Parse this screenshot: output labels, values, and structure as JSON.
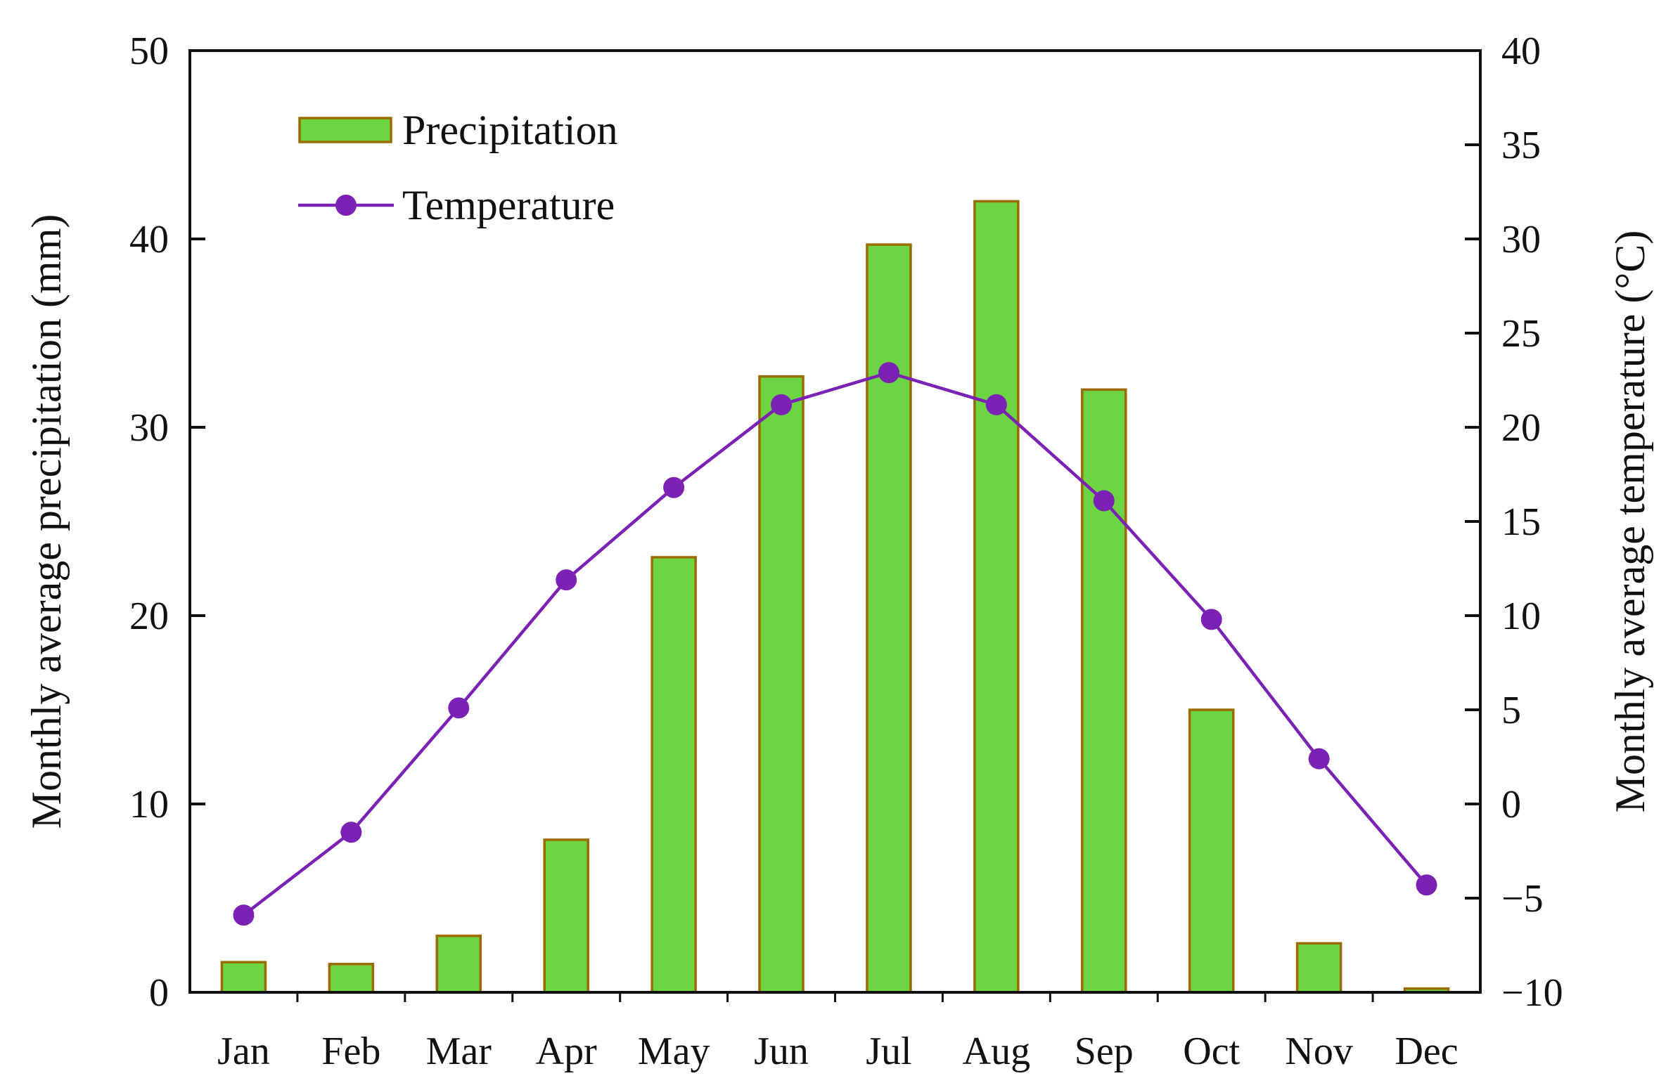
{
  "chart_data": {
    "type": "bar",
    "title": "",
    "categories": [
      "Jan",
      "Feb",
      "Mar",
      "Apr",
      "May",
      "Jun",
      "Jul",
      "Aug",
      "Sep",
      "Oct",
      "Nov",
      "Dec"
    ],
    "series": [
      {
        "name": "Precipitation",
        "type": "bar",
        "axis": "left",
        "values": [
          1.6,
          1.5,
          3.0,
          8.1,
          23.1,
          32.7,
          39.7,
          42.0,
          32.0,
          15.0,
          2.6,
          0.2
        ]
      },
      {
        "name": "Temperature",
        "type": "line",
        "axis": "right",
        "values": [
          -5.9,
          -1.5,
          5.1,
          11.9,
          16.8,
          21.2,
          22.9,
          21.2,
          16.1,
          9.8,
          2.4,
          -4.3
        ]
      }
    ],
    "xlabel": "",
    "ylabel": "Monthly average precipitation (mm)",
    "ylabel_right": "Monthly average temperature (°C)",
    "ylim": [
      0,
      50
    ],
    "ylim_right": [
      -10,
      40
    ],
    "yticks": [
      "0",
      "10",
      "20",
      "30",
      "40",
      "50"
    ],
    "yticks_right": [
      "−10",
      "−5",
      "0",
      "5",
      "10",
      "15",
      "20",
      "25",
      "30",
      "35",
      "40"
    ],
    "legend": {
      "position": "top-left",
      "entries": [
        "Precipitation",
        "Temperature"
      ]
    },
    "grid": false,
    "colors": {
      "bar_fill": "#6dd444",
      "bar_edge": "#9b6a00",
      "line": "#7b22b5",
      "axis": "#111111"
    }
  }
}
